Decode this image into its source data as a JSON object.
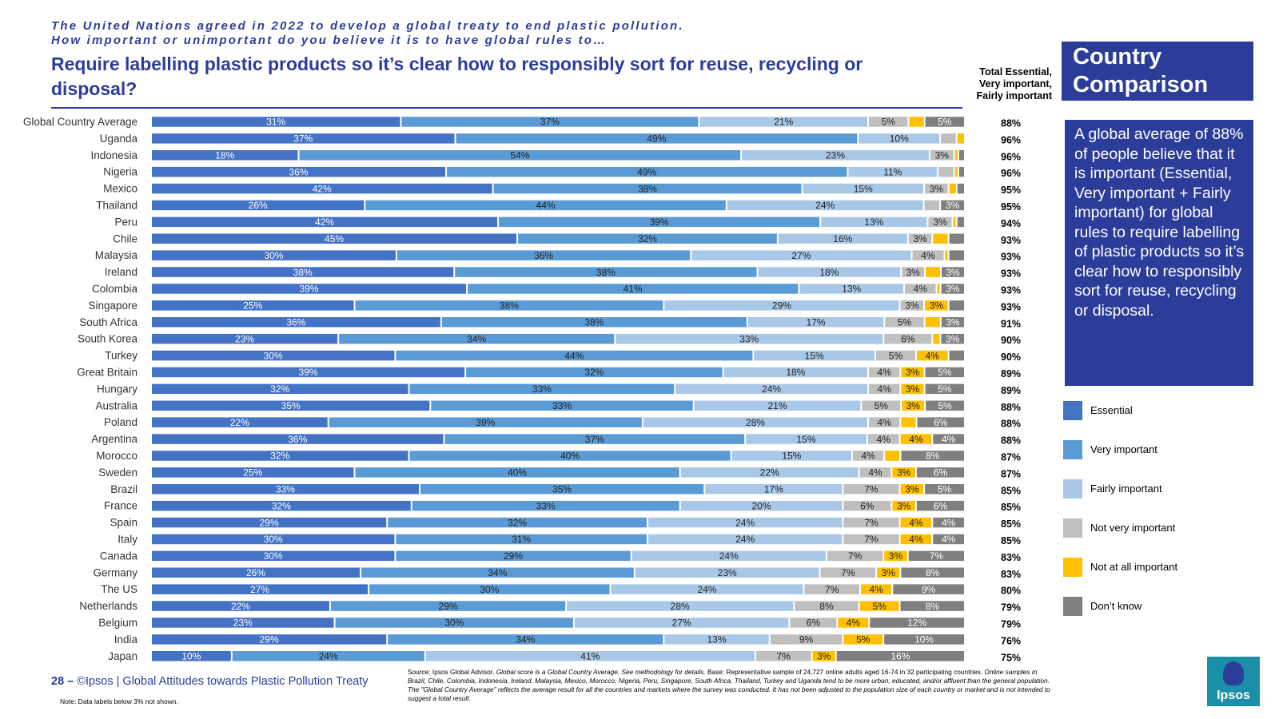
{
  "header": {
    "intro_line1": "The United Nations agreed in 2022 to develop a global treaty to end plastic pollution.",
    "intro_line2": "How important or unimportant do you believe it is to have global rules to…",
    "question": "Require labelling plastic products so it’s clear how to responsibly sort for reuse, recycling or disposal?",
    "total_header_line1": "Total Essential,",
    "total_header_line2": "Very important,",
    "total_header_line3": "Fairly important"
  },
  "side": {
    "comparison_title_line1": "Country",
    "comparison_title_line2": "Comparison",
    "summary": "A global average of 88% of people believe that it is important (Essential, Very important + Fairly important) for global rules to require labelling of plastic products so it’s clear how to responsibly sort for reuse, recycling or disposal."
  },
  "footer": {
    "page": "28 –",
    "brand": "©Ipsos",
    "report": "| Global Attitudes towards Plastic Pollution Treaty",
    "note": "Note: Data labels below 3% not shown.",
    "source_lead": "Source: Ipsos Global Advisor.",
    "source_italic1": "Global score is a Global Country Average. See methodology for details.",
    "source_mid": "Base: Representative sample of 24,727 online adults aged 16-74 in 32 participating countries.",
    "source_italic2": "Online samples in Brazil, Chile, Colombia, Indonesia, Ireland, Malaysia, Mexico, Morocco, Nigeria, Peru, Singapore, South Africa, Thailand, Turkey and Uganda tend to be more urban, educated, and/or affluent than the general population. The \"Global Country Average\" reflects the average result for all the countries and markets where the survey was conducted. It has not been adjusted to the population size of each country or market and is not intended to suggest a total result.",
    "logo_text": "Ipsos"
  },
  "chart_data": {
    "type": "bar",
    "orientation": "horizontal",
    "stacked": true,
    "label_threshold_note": "Data labels below 3% not shown.",
    "series_colors": [
      "#4472c4",
      "#5b9bd5",
      "#a9c8e8",
      "#bfbfbf",
      "#ffc000",
      "#7f7f7f"
    ],
    "label_colors": [
      "#ffffff",
      "#222222",
      "#222222",
      "#222222",
      "#222222",
      "#ffffff"
    ],
    "series_names": [
      "Essential",
      "Very important",
      "Fairly important",
      "Not very important",
      "Not at all important",
      "Don’t know"
    ],
    "categories": [
      "Global Country Average",
      "Uganda",
      "Indonesia",
      "Nigeria",
      "Mexico",
      "Thailand",
      "Peru",
      "Chile",
      "Malaysia",
      "Ireland",
      "Colombia",
      "Singapore",
      "South Africa",
      "South Korea",
      "Turkey",
      "Great Britain",
      "Hungary",
      "Australia",
      "Poland",
      "Argentina",
      "Morocco",
      "Sweden",
      "Brazil",
      "France",
      "Spain",
      "Italy",
      "Canada",
      "Germany",
      "The US",
      "Netherlands",
      "Belgium",
      "India",
      "Japan"
    ],
    "values": [
      [
        31,
        37,
        21,
        5,
        2,
        5
      ],
      [
        37,
        49,
        10,
        2,
        1,
        0
      ],
      [
        18,
        54,
        23,
        3,
        0.5,
        0.8
      ],
      [
        36,
        49,
        11,
        2,
        0.5,
        0.8
      ],
      [
        42,
        38,
        15,
        3,
        1,
        1
      ],
      [
        26,
        44,
        24,
        2,
        0,
        3
      ],
      [
        42,
        39,
        13,
        3,
        0.5,
        1
      ],
      [
        45,
        32,
        16,
        3,
        2,
        2
      ],
      [
        30,
        36,
        27,
        4,
        0.5,
        2
      ],
      [
        38,
        38,
        18,
        3,
        2,
        3
      ],
      [
        39,
        41,
        13,
        4,
        0.5,
        3
      ],
      [
        25,
        38,
        29,
        3,
        3,
        2
      ],
      [
        36,
        38,
        17,
        5,
        2,
        3
      ],
      [
        23,
        34,
        33,
        6,
        1,
        3
      ],
      [
        30,
        44,
        15,
        5,
        4,
        2
      ],
      [
        39,
        32,
        18,
        4,
        3,
        5
      ],
      [
        32,
        33,
        24,
        4,
        3,
        5
      ],
      [
        35,
        33,
        21,
        5,
        3,
        5
      ],
      [
        22,
        39,
        28,
        4,
        2,
        6
      ],
      [
        36,
        37,
        15,
        4,
        4,
        4
      ],
      [
        32,
        40,
        15,
        4,
        2,
        8
      ],
      [
        25,
        40,
        22,
        4,
        3,
        6
      ],
      [
        33,
        35,
        17,
        7,
        3,
        5
      ],
      [
        32,
        33,
        20,
        6,
        3,
        6
      ],
      [
        29,
        32,
        24,
        7,
        4,
        4
      ],
      [
        30,
        31,
        24,
        7,
        4,
        4
      ],
      [
        30,
        29,
        24,
        7,
        3,
        7
      ],
      [
        26,
        34,
        23,
        7,
        3,
        8
      ],
      [
        27,
        30,
        24,
        7,
        4,
        9
      ],
      [
        22,
        29,
        28,
        8,
        5,
        8
      ],
      [
        23,
        30,
        27,
        6,
        4,
        12
      ],
      [
        29,
        34,
        13,
        9,
        5,
        10
      ],
      [
        10,
        24,
        41,
        7,
        3,
        16
      ]
    ],
    "totals": [
      "88%",
      "96%",
      "96%",
      "96%",
      "95%",
      "95%",
      "94%",
      "93%",
      "93%",
      "93%",
      "93%",
      "93%",
      "91%",
      "90%",
      "90%",
      "89%",
      "89%",
      "88%",
      "88%",
      "88%",
      "87%",
      "87%",
      "85%",
      "85%",
      "85%",
      "85%",
      "83%",
      "83%",
      "80%",
      "79%",
      "79%",
      "76%",
      "75%"
    ],
    "legend_position": "right"
  }
}
